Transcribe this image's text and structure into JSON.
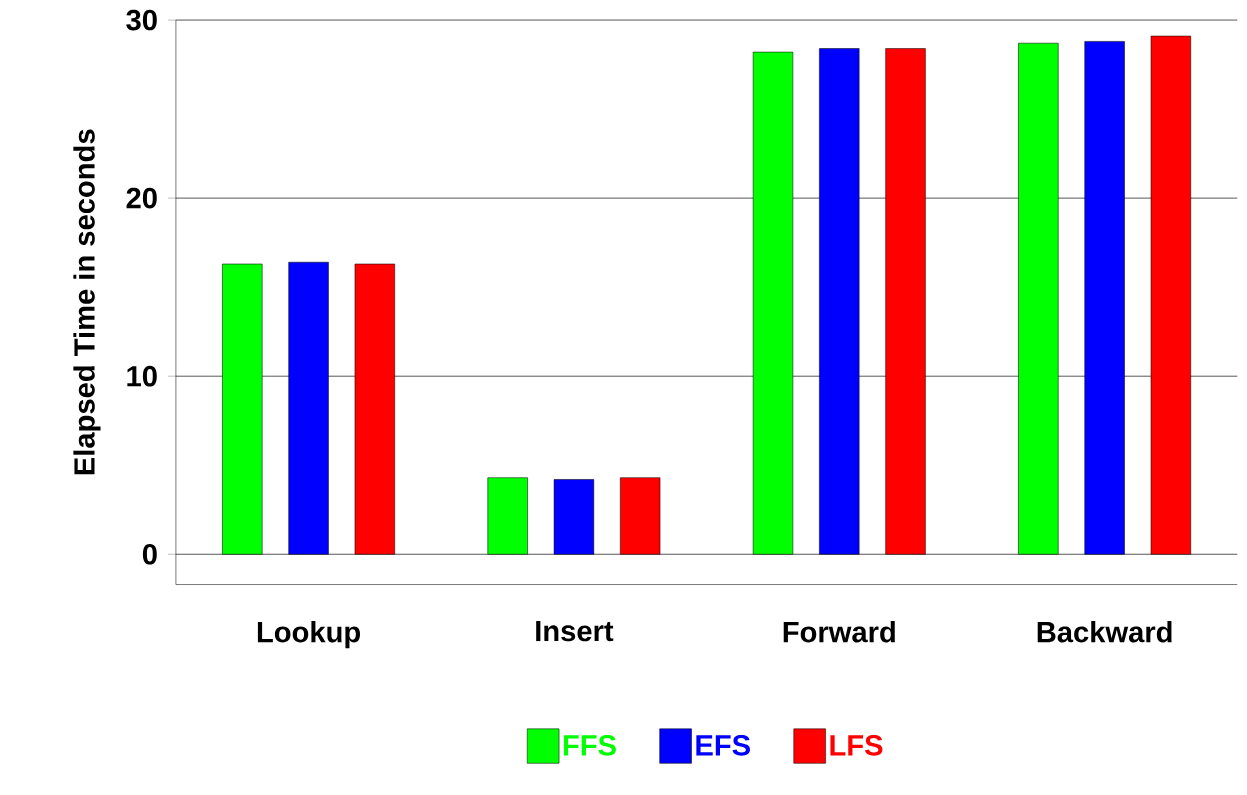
{
  "chart_data": {
    "type": "bar",
    "ylabel": "Elapsed Time in seconds",
    "categories": [
      "Lookup",
      "Insert",
      "Forward",
      "Backward"
    ],
    "ylim": [
      -1.7,
      30
    ],
    "yticks": [
      0,
      10,
      20,
      30
    ],
    "grid": "y",
    "legend": "bottom",
    "series": [
      {
        "name": "FFS",
        "color": "#00ff00",
        "values": [
          16.3,
          4.3,
          28.2,
          28.7
        ]
      },
      {
        "name": "EFS",
        "color": "#0000ff",
        "values": [
          16.4,
          4.2,
          28.4,
          28.8
        ]
      },
      {
        "name": "LFS",
        "color": "#ff0000",
        "values": [
          16.3,
          4.3,
          28.4,
          29.1
        ]
      }
    ]
  }
}
